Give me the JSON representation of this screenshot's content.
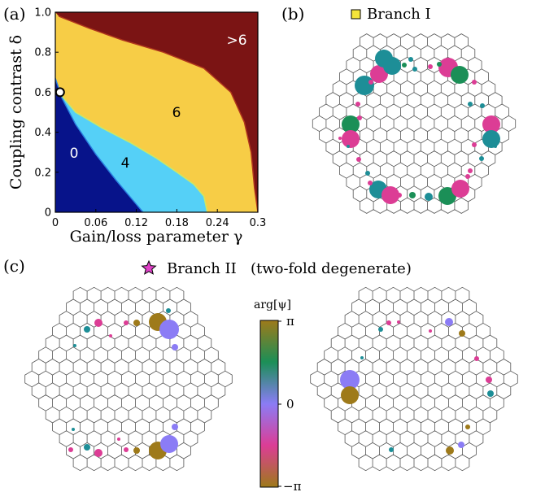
{
  "panel_labels": {
    "a": "(a)",
    "b": "(b)",
    "c": "(c)"
  },
  "legend_b": {
    "label": "Branch I",
    "marker_color": "#f5e43a"
  },
  "legend_c": {
    "label": "Branch II   (two-fold degenerate)",
    "marker_color": "#e040c8"
  },
  "colorbar": {
    "title": "arg[ψ]",
    "top_label": "π",
    "mid_label": "0",
    "bottom_label": "−π"
  },
  "colors": {
    "deep_blue": "#07138a",
    "light_blue": "#55d0f7",
    "yellow": "#f7cd46",
    "dark_red": "#7b1414",
    "teal": "#1d8e97",
    "pink": "#dc3d95",
    "green": "#1b8f57",
    "olive": "#9e7a1a",
    "violet": "#8b7cf5",
    "magenta": "#d43bd6",
    "lattice": "#555555"
  },
  "chart_data": {
    "type": "heatmap",
    "xlabel": "Gain/loss parameter γ",
    "ylabel": "Coupling contrast δ",
    "xlim": [
      0,
      0.3
    ],
    "ylim": [
      0,
      1.0
    ],
    "xticks": [
      "0",
      "0.06",
      "0.12",
      "0.18",
      "0.24",
      "0.3"
    ],
    "yticks": [
      "0",
      "0.2",
      "0.4",
      "0.6",
      "0.8",
      "1.0"
    ],
    "regions": [
      {
        "label": "0",
        "color": "#07138a"
      },
      {
        "label": "4",
        "color": "#55d0f7"
      },
      {
        "label": "6",
        "color": "#f7cd46"
      },
      {
        "label": ">6",
        "color": "#7b1414"
      }
    ],
    "boundaries": {
      "zero_region_edge": [
        [
          0.0,
          0.67
        ],
        [
          0.01,
          0.57
        ],
        [
          0.03,
          0.44
        ],
        [
          0.06,
          0.29
        ],
        [
          0.09,
          0.16
        ],
        [
          0.12,
          0.04
        ],
        [
          0.13,
          0.0
        ]
      ],
      "four_region_edge": [
        [
          0.005,
          0.6
        ],
        [
          0.03,
          0.5
        ],
        [
          0.07,
          0.42
        ],
        [
          0.11,
          0.35
        ],
        [
          0.15,
          0.27
        ],
        [
          0.18,
          0.2
        ],
        [
          0.205,
          0.14
        ],
        [
          0.22,
          0.08
        ],
        [
          0.225,
          0.0
        ]
      ],
      "six_region_edge": [
        [
          0.005,
          0.98
        ],
        [
          0.05,
          0.92
        ],
        [
          0.1,
          0.86
        ],
        [
          0.16,
          0.8
        ],
        [
          0.22,
          0.72
        ],
        [
          0.26,
          0.6
        ],
        [
          0.28,
          0.45
        ],
        [
          0.29,
          0.3
        ],
        [
          0.295,
          0.12
        ],
        [
          0.3,
          0.0
        ]
      ]
    },
    "marked_point": {
      "x": 0.007,
      "y": 0.6
    }
  }
}
